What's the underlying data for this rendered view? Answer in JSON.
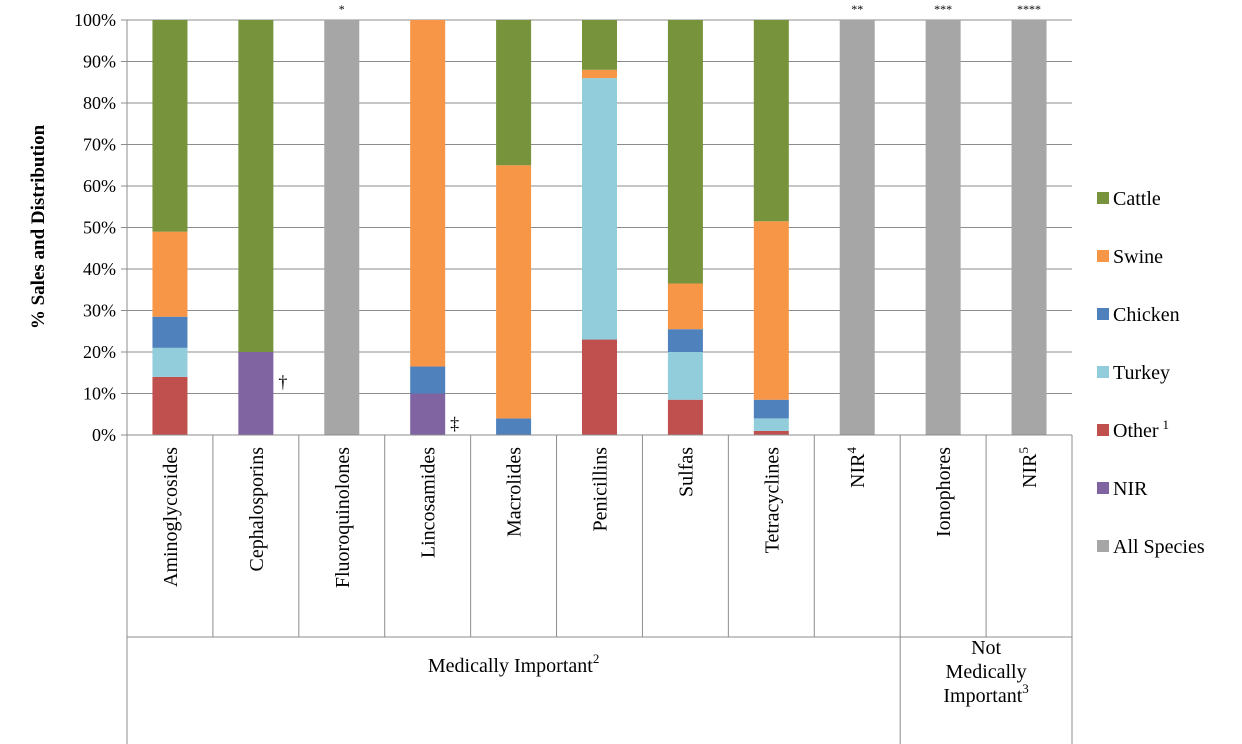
{
  "chart_data": {
    "type": "bar",
    "stacked": true,
    "percent": true,
    "ylabel": "% Sales and Distribution",
    "ylim": [
      0,
      100
    ],
    "yticks": [
      "0%",
      "10%",
      "20%",
      "30%",
      "40%",
      "50%",
      "60%",
      "70%",
      "80%",
      "90%",
      "100%"
    ],
    "grid": true,
    "legend_position": "right",
    "categories": [
      "Aminoglycosides",
      "Cephalosporins",
      "Fluoroquinolones",
      "Lincosamides",
      "Macrolides",
      "Penicillins",
      "Sulfas",
      "Tetracyclines",
      "NIR",
      "Ionophores",
      "NIR"
    ],
    "category_superscripts": [
      "",
      "",
      "",
      "",
      "",
      "",
      "",
      "",
      "4",
      "",
      "5"
    ],
    "series": [
      {
        "name": "Other",
        "superscript": "1",
        "color": "#c0504d",
        "values": [
          14,
          0,
          0,
          0,
          0,
          23,
          8.5,
          1,
          0,
          0,
          0
        ]
      },
      {
        "name": "Turkey",
        "superscript": "",
        "color": "#92cddc",
        "values": [
          7,
          0,
          0,
          0,
          0,
          63,
          11.5,
          3,
          0,
          0,
          0
        ]
      },
      {
        "name": "Chicken",
        "superscript": "",
        "color": "#4f81bd",
        "values": [
          7.5,
          0,
          0,
          6.5,
          4,
          0,
          5.5,
          4.5,
          0,
          0,
          0
        ]
      },
      {
        "name": "Swine",
        "superscript": "",
        "color": "#f79646",
        "values": [
          20.5,
          0,
          0,
          83.5,
          61,
          2,
          11,
          43,
          0,
          0,
          0
        ]
      },
      {
        "name": "Cattle",
        "superscript": "",
        "color": "#77933c",
        "values": [
          51,
          80,
          0,
          0,
          35,
          12,
          63.5,
          48.5,
          0,
          0,
          0
        ]
      },
      {
        "name": "NIR",
        "superscript": "",
        "color": "#8064a2",
        "values": [
          0,
          20,
          0,
          10,
          0,
          0,
          0,
          0,
          0,
          0,
          0
        ]
      },
      {
        "name": "All Species",
        "superscript": "",
        "color": "#a6a6a6",
        "values": [
          0,
          0,
          100,
          0,
          0,
          0,
          0,
          0,
          100,
          100,
          100
        ]
      }
    ],
    "legend_order": [
      "Cattle",
      "Swine",
      "Chicken",
      "Turkey",
      "Other",
      "NIR",
      "All Species"
    ],
    "annotations": {
      "top_marks": [
        "",
        "",
        "*",
        "",
        "",
        "",
        "",
        "",
        "**",
        "***",
        "****"
      ],
      "bar_marks": [
        "",
        "†",
        "",
        "‡",
        "",
        "",
        "",
        "",
        "",
        "",
        ""
      ]
    },
    "groups": [
      {
        "lines": [
          "Medically Important"
        ],
        "superscript": "2",
        "span": 9
      },
      {
        "lines": [
          "Not",
          "Medically",
          "Important"
        ],
        "superscript": "3",
        "span": 2
      }
    ]
  }
}
